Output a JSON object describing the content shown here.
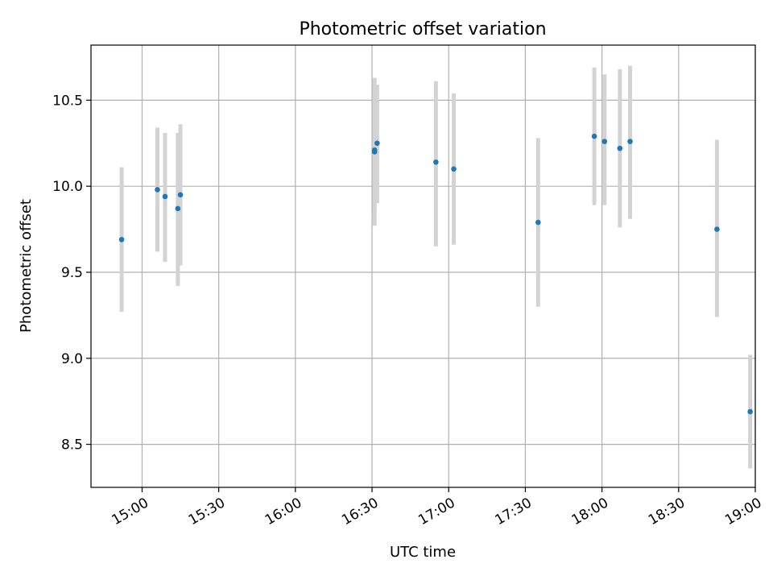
{
  "chart_data": {
    "type": "scatter",
    "title": "Photometric offset variation",
    "xlabel": "UTC time",
    "ylabel": "Photometric offset",
    "xlim": [
      "14:40",
      "19:00"
    ],
    "ylim": [
      8.25,
      10.82
    ],
    "grid": true,
    "x_ticks": [
      "15:00",
      "15:30",
      "16:00",
      "16:30",
      "17:00",
      "17:30",
      "18:00",
      "18:30",
      "19:00"
    ],
    "y_ticks": [
      "8.5",
      "9.0",
      "9.5",
      "10.0",
      "10.5"
    ],
    "series": [
      {
        "marker_color": "#1f77b4",
        "errorbar_color": "#d3d3d3",
        "points": [
          {
            "x": "14:52",
            "y": 9.69,
            "low": 9.27,
            "high": 10.11
          },
          {
            "x": "15:06",
            "y": 9.98,
            "low": 9.62,
            "high": 10.34
          },
          {
            "x": "15:09",
            "y": 9.94,
            "low": 9.56,
            "high": 10.31
          },
          {
            "x": "15:14",
            "y": 9.87,
            "low": 9.42,
            "high": 10.31
          },
          {
            "x": "15:15",
            "y": 9.95,
            "low": 9.54,
            "high": 10.36
          },
          {
            "x": "16:31",
            "y": 10.2,
            "low": 9.77,
            "high": 10.63
          },
          {
            "x": "16:31",
            "y": 10.21,
            "low": 9.84,
            "high": 10.59
          },
          {
            "x": "16:32",
            "y": 10.25,
            "low": 9.9,
            "high": 10.59
          },
          {
            "x": "16:55",
            "y": 10.14,
            "low": 9.65,
            "high": 10.61
          },
          {
            "x": "17:02",
            "y": 10.1,
            "low": 9.66,
            "high": 10.54
          },
          {
            "x": "17:35",
            "y": 9.79,
            "low": 9.3,
            "high": 10.28
          },
          {
            "x": "17:57",
            "y": 10.29,
            "low": 9.89,
            "high": 10.69
          },
          {
            "x": "18:01",
            "y": 10.26,
            "low": 9.89,
            "high": 10.65
          },
          {
            "x": "18:07",
            "y": 10.22,
            "low": 9.76,
            "high": 10.68
          },
          {
            "x": "18:11",
            "y": 10.26,
            "low": 9.81,
            "high": 10.7
          },
          {
            "x": "18:45",
            "y": 9.75,
            "low": 9.24,
            "high": 10.27
          },
          {
            "x": "18:58",
            "y": 8.69,
            "low": 8.36,
            "high": 9.02
          }
        ]
      }
    ]
  }
}
